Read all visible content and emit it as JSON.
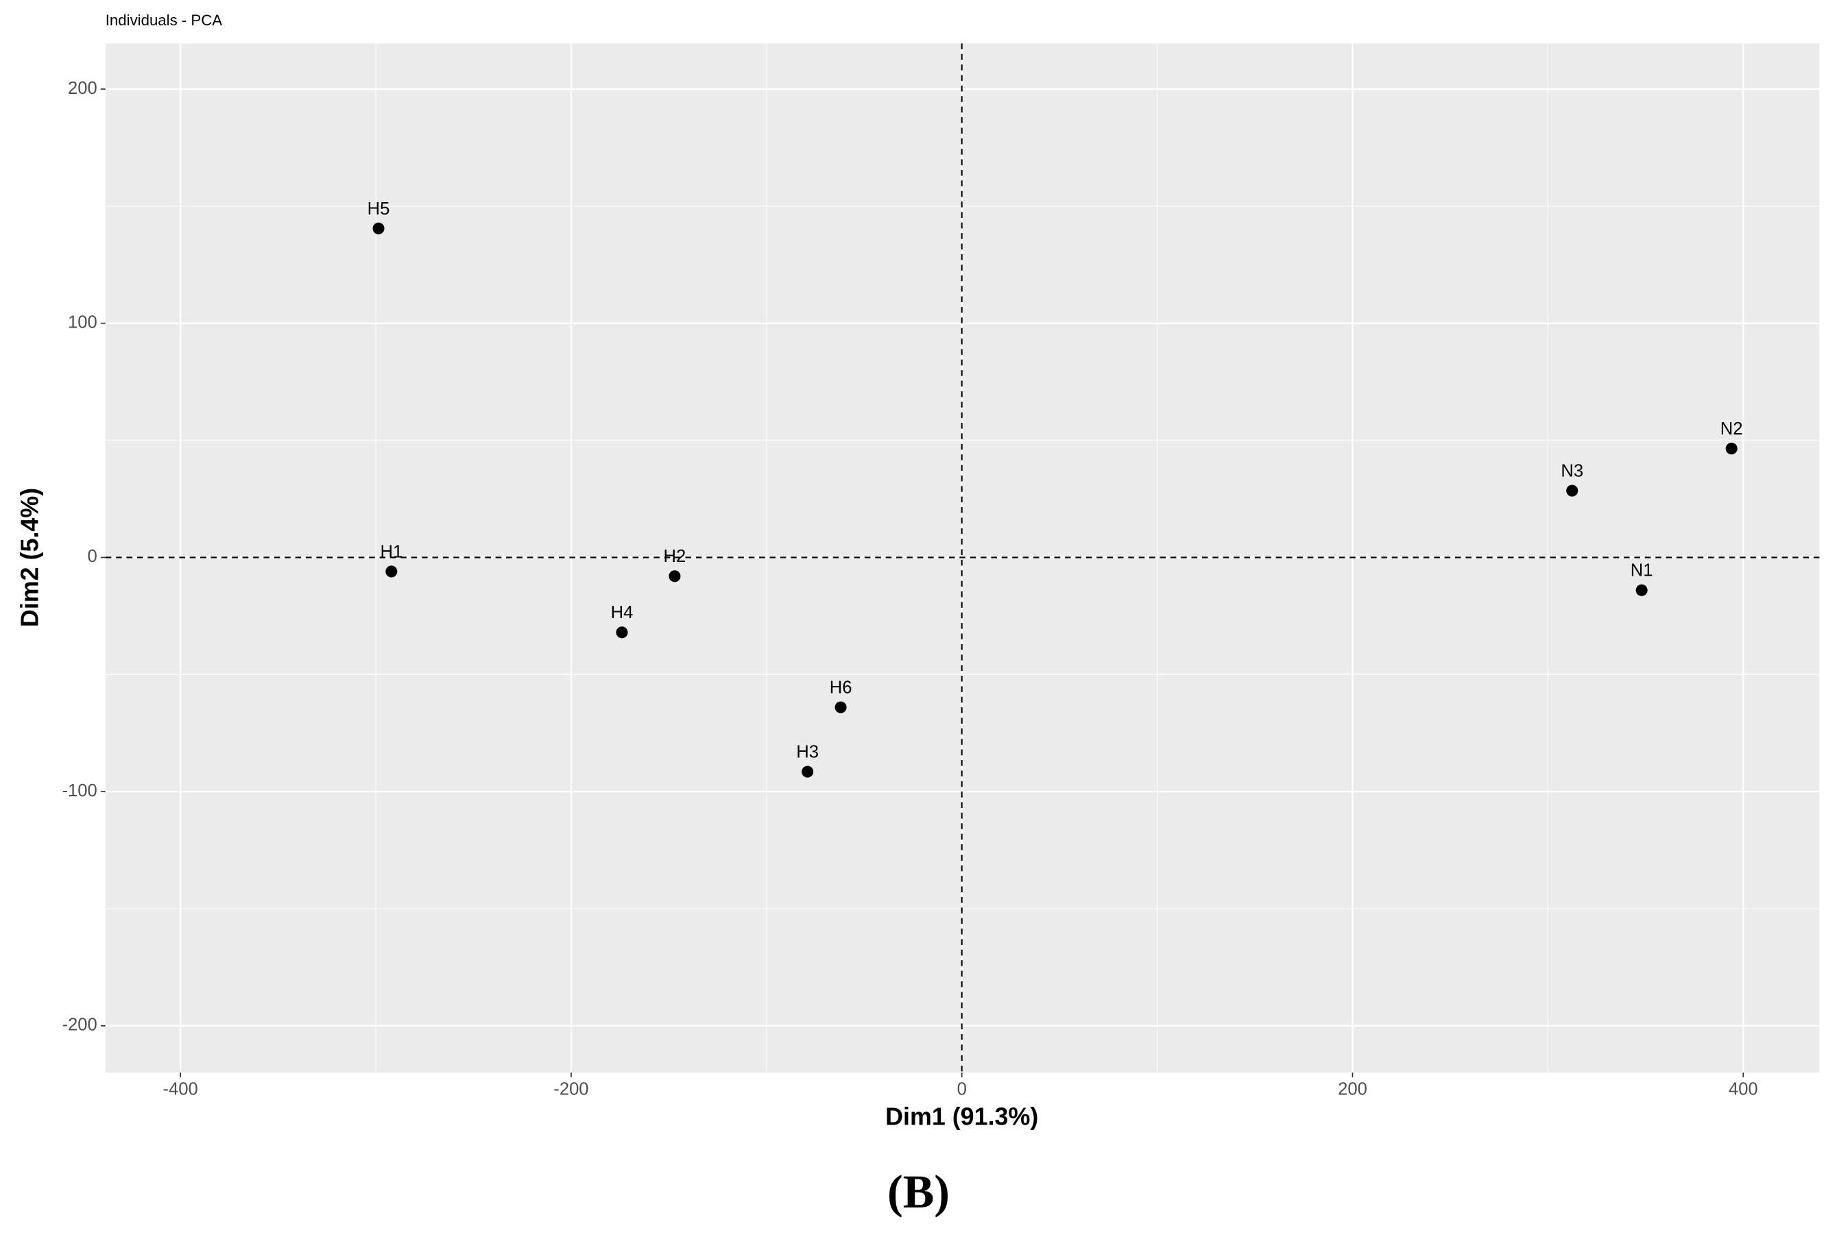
{
  "chart_data": {
    "type": "scatter",
    "title": "Individuals - PCA",
    "x_label": "Dim1 (91.3%)",
    "y_label": "Dim2 (5.4%)",
    "panel_label": "(B)",
    "series": [
      {
        "color": "#000000",
        "labels": [
          "H5",
          "H1",
          "H2",
          "H4",
          "H6",
          "H3",
          "N3",
          "N2",
          "N1"
        ],
        "x": [
          -298.6,
          -292,
          -147,
          -174,
          -62,
          -79,
          312.4,
          394,
          348
        ],
        "values": [
          140.5,
          -6,
          -8,
          -32,
          -64,
          -91.5,
          28.5,
          46.5,
          -14
        ]
      }
    ],
    "xlim": [
      -438.4,
      439
    ],
    "ylim": [
      -220,
      219.5
    ],
    "xticks": [
      -400,
      -200,
      0,
      200,
      400
    ],
    "yticks": [
      -200,
      -100,
      0,
      100,
      200
    ],
    "xminor": [
      -300,
      -100,
      100,
      300
    ],
    "yminor": [
      -150,
      -50,
      50,
      150
    ],
    "hline": 0,
    "vline": 0,
    "grid": true,
    "background": "#ebebeb"
  }
}
